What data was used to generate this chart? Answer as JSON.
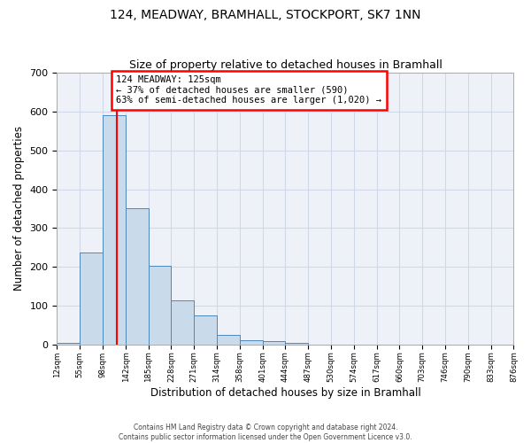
{
  "title1": "124, MEADWAY, BRAMHALL, STOCKPORT, SK7 1NN",
  "title2": "Size of property relative to detached houses in Bramhall",
  "xlabel": "Distribution of detached houses by size in Bramhall",
  "ylabel": "Number of detached properties",
  "bin_edges": [
    12,
    55,
    98,
    142,
    185,
    228,
    271,
    314,
    358,
    401,
    444,
    487,
    530,
    574,
    617,
    660,
    703,
    746,
    790,
    833,
    876
  ],
  "bar_heights": [
    5,
    237,
    590,
    350,
    202,
    115,
    75,
    25,
    12,
    8,
    5,
    0,
    0,
    0,
    0,
    0,
    0,
    0,
    0,
    0
  ],
  "bar_color": "#c9daea",
  "bar_edge_color": "#4d88bb",
  "grid_color": "#d0d8e8",
  "background_color": "#eef2f8",
  "red_line_x": 125,
  "annotation_text": "124 MEADWAY: 125sqm\n← 37% of detached houses are smaller (590)\n63% of semi-detached houses are larger (1,020) →",
  "annotation_box_color": "white",
  "annotation_box_edge": "red",
  "ylim": [
    0,
    700
  ],
  "yticks": [
    0,
    100,
    200,
    300,
    400,
    500,
    600,
    700
  ],
  "footer1": "Contains HM Land Registry data © Crown copyright and database right 2024.",
  "footer2": "Contains public sector information licensed under the Open Government Licence v3.0."
}
